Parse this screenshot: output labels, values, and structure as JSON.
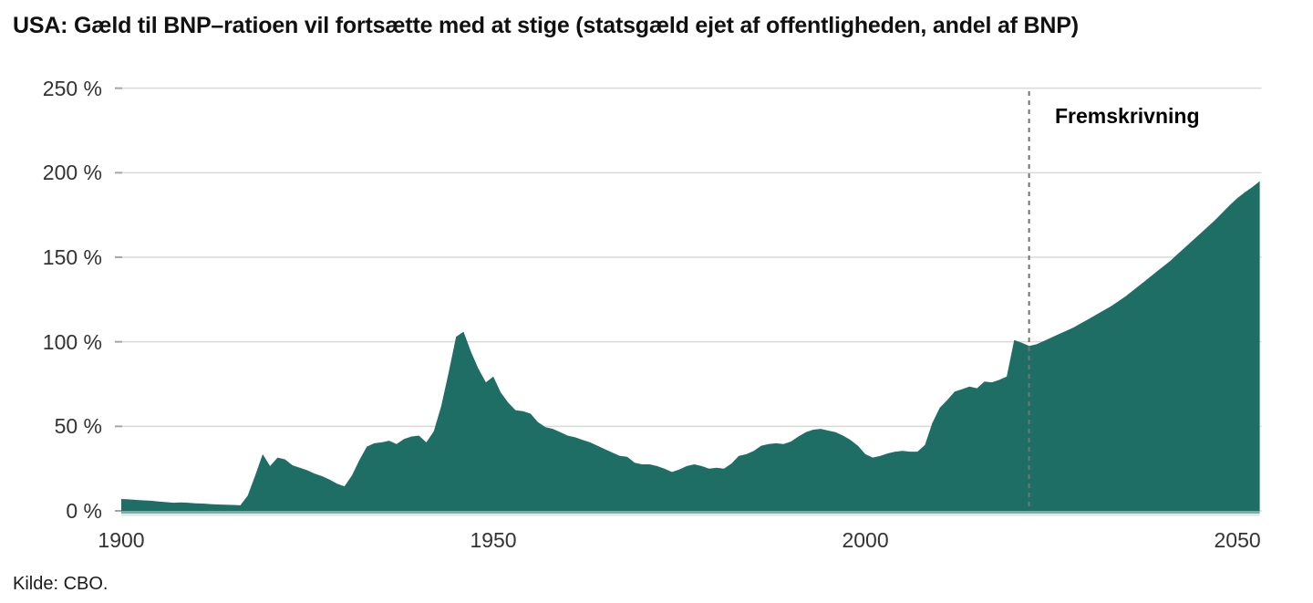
{
  "colors": {
    "area_fill": "#1f6e65",
    "grid": "#d9d9d9",
    "tick": "#a6a6a6",
    "projection_line": "#737373",
    "baseline_inner": "#78aca5",
    "baseline_outer": "#d3e4e2"
  },
  "chart_data": {
    "type": "area",
    "title": "USA: Gæld til BNP–ratioen vil fortsætte med at stige (statsgæld ejet af offentligheden, andel af BNP)",
    "source": "Kilde: CBO.",
    "xlabel": "",
    "ylabel": "",
    "x_range": [
      1900,
      2053
    ],
    "y_range": [
      0,
      250
    ],
    "grid": "horizontal",
    "legend": "none",
    "x_ticks": [
      {
        "value": 1900,
        "label": "1900"
      },
      {
        "value": 1950,
        "label": "1950"
      },
      {
        "value": 2000,
        "label": "2000"
      },
      {
        "value": 2050,
        "label": "2050"
      }
    ],
    "y_ticks": [
      {
        "value": 250,
        "label": "250 %"
      },
      {
        "value": 200,
        "label": "200 %"
      },
      {
        "value": 150,
        "label": "150 %"
      },
      {
        "value": 100,
        "label": "100 %"
      },
      {
        "value": 50,
        "label": "50 %"
      },
      {
        "value": 0,
        "label": "0 %"
      }
    ],
    "projection": {
      "start_year": 2022,
      "label": "Fremskrivning"
    },
    "points": [
      [
        1900,
        7
      ],
      [
        1901,
        6.8
      ],
      [
        1902,
        6.5
      ],
      [
        1903,
        6.2
      ],
      [
        1904,
        6
      ],
      [
        1905,
        5.5
      ],
      [
        1906,
        5.2
      ],
      [
        1907,
        4.8
      ],
      [
        1908,
        5
      ],
      [
        1909,
        4.8
      ],
      [
        1910,
        4.5
      ],
      [
        1911,
        4.3
      ],
      [
        1912,
        4
      ],
      [
        1913,
        3.8
      ],
      [
        1914,
        3.6
      ],
      [
        1915,
        3.5
      ],
      [
        1916,
        3.3
      ],
      [
        1917,
        9
      ],
      [
        1918,
        21
      ],
      [
        1919,
        33.5
      ],
      [
        1920,
        26.5
      ],
      [
        1921,
        31.5
      ],
      [
        1922,
        30.5
      ],
      [
        1923,
        27
      ],
      [
        1924,
        25.5
      ],
      [
        1925,
        24
      ],
      [
        1926,
        22
      ],
      [
        1927,
        20.5
      ],
      [
        1928,
        18.5
      ],
      [
        1929,
        16
      ],
      [
        1930,
        14.5
      ],
      [
        1931,
        21
      ],
      [
        1932,
        30
      ],
      [
        1933,
        38
      ],
      [
        1934,
        40
      ],
      [
        1935,
        40.5
      ],
      [
        1936,
        41.5
      ],
      [
        1937,
        39.5
      ],
      [
        1938,
        42.5
      ],
      [
        1939,
        44
      ],
      [
        1940,
        44.5
      ],
      [
        1941,
        40.5
      ],
      [
        1942,
        47
      ],
      [
        1943,
        62
      ],
      [
        1944,
        82
      ],
      [
        1945,
        103
      ],
      [
        1946,
        106
      ],
      [
        1947,
        94
      ],
      [
        1948,
        84
      ],
      [
        1949,
        76
      ],
      [
        1950,
        79.5
      ],
      [
        1951,
        70
      ],
      [
        1952,
        64
      ],
      [
        1953,
        59.5
      ],
      [
        1954,
        59
      ],
      [
        1955,
        57.5
      ],
      [
        1956,
        52.5
      ],
      [
        1957,
        49.5
      ],
      [
        1958,
        48.5
      ],
      [
        1959,
        46.5
      ],
      [
        1960,
        44.5
      ],
      [
        1961,
        43.5
      ],
      [
        1962,
        42
      ],
      [
        1963,
        40.5
      ],
      [
        1964,
        38.5
      ],
      [
        1965,
        36.5
      ],
      [
        1966,
        34.5
      ],
      [
        1967,
        32.5
      ],
      [
        1968,
        32
      ],
      [
        1969,
        28.5
      ],
      [
        1970,
        27.5
      ],
      [
        1971,
        27.5
      ],
      [
        1972,
        26.5
      ],
      [
        1973,
        25
      ],
      [
        1974,
        23
      ],
      [
        1975,
        24.5
      ],
      [
        1976,
        26.5
      ],
      [
        1977,
        27.5
      ],
      [
        1978,
        26.5
      ],
      [
        1979,
        25
      ],
      [
        1980,
        25.5
      ],
      [
        1981,
        25
      ],
      [
        1982,
        28
      ],
      [
        1983,
        32.5
      ],
      [
        1984,
        33.5
      ],
      [
        1985,
        35.5
      ],
      [
        1986,
        38.5
      ],
      [
        1987,
        39.5
      ],
      [
        1988,
        40
      ],
      [
        1989,
        39.5
      ],
      [
        1990,
        41
      ],
      [
        1991,
        44
      ],
      [
        1992,
        46.5
      ],
      [
        1993,
        48
      ],
      [
        1994,
        48.5
      ],
      [
        1995,
        47.5
      ],
      [
        1996,
        46.5
      ],
      [
        1997,
        44.5
      ],
      [
        1998,
        42
      ],
      [
        1999,
        38.5
      ],
      [
        2000,
        33.5
      ],
      [
        2001,
        31.5
      ],
      [
        2002,
        32.5
      ],
      [
        2003,
        34
      ],
      [
        2004,
        35
      ],
      [
        2005,
        35.5
      ],
      [
        2006,
        35
      ],
      [
        2007,
        35
      ],
      [
        2008,
        39
      ],
      [
        2009,
        52
      ],
      [
        2010,
        61
      ],
      [
        2011,
        65.5
      ],
      [
        2012,
        70.5
      ],
      [
        2013,
        72
      ],
      [
        2014,
        73.5
      ],
      [
        2015,
        72.5
      ],
      [
        2016,
        76.5
      ],
      [
        2017,
        76
      ],
      [
        2018,
        77.5
      ],
      [
        2019,
        79.5
      ],
      [
        2020,
        101
      ],
      [
        2021,
        99.5
      ],
      [
        2022,
        97.5
      ],
      [
        2023,
        98.5
      ],
      [
        2024,
        100.5
      ],
      [
        2025,
        102.5
      ],
      [
        2026,
        104.5
      ],
      [
        2027,
        106.5
      ],
      [
        2028,
        108.5
      ],
      [
        2029,
        111
      ],
      [
        2030,
        113.5
      ],
      [
        2031,
        116
      ],
      [
        2032,
        118.5
      ],
      [
        2033,
        121
      ],
      [
        2034,
        124
      ],
      [
        2035,
        127
      ],
      [
        2036,
        130.5
      ],
      [
        2037,
        134
      ],
      [
        2038,
        137.5
      ],
      [
        2039,
        141
      ],
      [
        2040,
        144.5
      ],
      [
        2041,
        148
      ],
      [
        2042,
        152
      ],
      [
        2043,
        156
      ],
      [
        2044,
        160
      ],
      [
        2045,
        164
      ],
      [
        2046,
        168
      ],
      [
        2047,
        172
      ],
      [
        2048,
        176.5
      ],
      [
        2049,
        181
      ],
      [
        2050,
        185
      ],
      [
        2051,
        188.5
      ],
      [
        2052,
        191.5
      ],
      [
        2053,
        195
      ]
    ]
  }
}
